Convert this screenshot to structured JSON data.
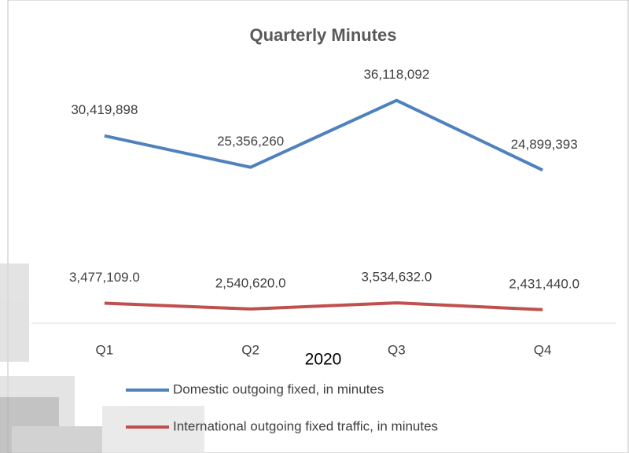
{
  "chart_data": {
    "type": "line",
    "title": "Quarterly Minutes",
    "x_label": "2020",
    "categories": [
      "Q1",
      "Q2",
      "Q3",
      "Q4"
    ],
    "series": [
      {
        "name": "Domestic outgoing fixed, in minutes",
        "color": "#4f81bd",
        "values": [
          30419898,
          25356260,
          36118092,
          24899393
        ],
        "value_labels": [
          "30,419,898",
          "25,356,260",
          "36,118,092",
          "24,899,393"
        ]
      },
      {
        "name": "International outgoing fixed traffic, in minutes",
        "color": "#c0504d",
        "values": [
          3477109,
          2540620,
          3534632,
          2431440
        ],
        "value_labels": [
          "3,477,109.0",
          "2,540,620.0",
          "3,534,632.0",
          "2,431,440.0"
        ]
      }
    ],
    "ylim": [
      0,
      40000000
    ],
    "legend": "bottom"
  }
}
